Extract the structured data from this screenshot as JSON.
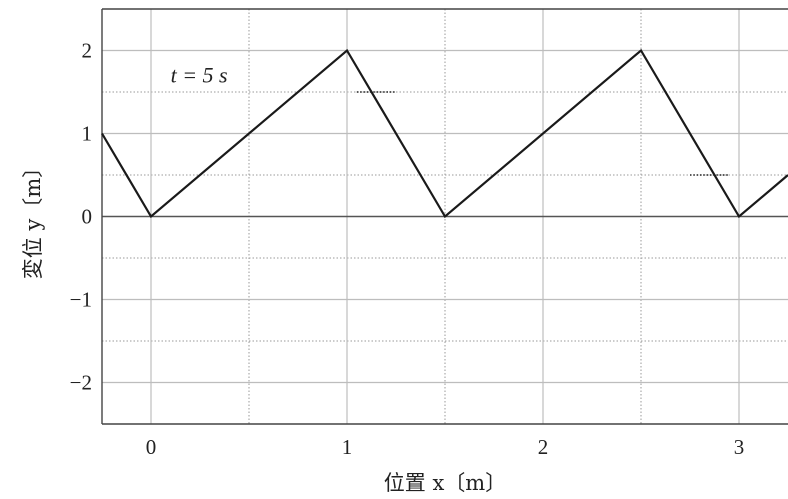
{
  "chart_data": {
    "type": "line",
    "xlabel": "位置 x〔m〕",
    "ylabel": "変位 y〔m〕",
    "xlim": [
      -0.25,
      3.25
    ],
    "ylim": [
      -2.5,
      2.5
    ],
    "x_ticks": [
      {
        "value": 0,
        "label": "0"
      },
      {
        "value": 1,
        "label": "1"
      },
      {
        "value": 2,
        "label": "2"
      },
      {
        "value": 3,
        "label": "3"
      }
    ],
    "y_ticks": [
      {
        "value": 2,
        "label": "2"
      },
      {
        "value": 1,
        "label": "1"
      },
      {
        "value": 0,
        "label": "0"
      },
      {
        "value": -1,
        "label": "−1"
      },
      {
        "value": -2,
        "label": "−2"
      }
    ],
    "grid": true,
    "series": [
      {
        "x": [
          -0.25,
          0,
          1,
          1.5,
          2.5,
          3,
          3.25
        ],
        "y": [
          1,
          0,
          2,
          0,
          2,
          0,
          0.5
        ]
      }
    ],
    "annotations": [
      {
        "text": "t = 5 s",
        "x": 0.1,
        "y": 1.7
      },
      {
        "type": "dotted-segment",
        "x": [
          1.05,
          1.25
        ],
        "y": [
          1.5,
          1.5
        ]
      },
      {
        "type": "dotted-segment",
        "x": [
          2.75,
          2.95
        ],
        "y": [
          0.5,
          0.5
        ]
      }
    ]
  }
}
